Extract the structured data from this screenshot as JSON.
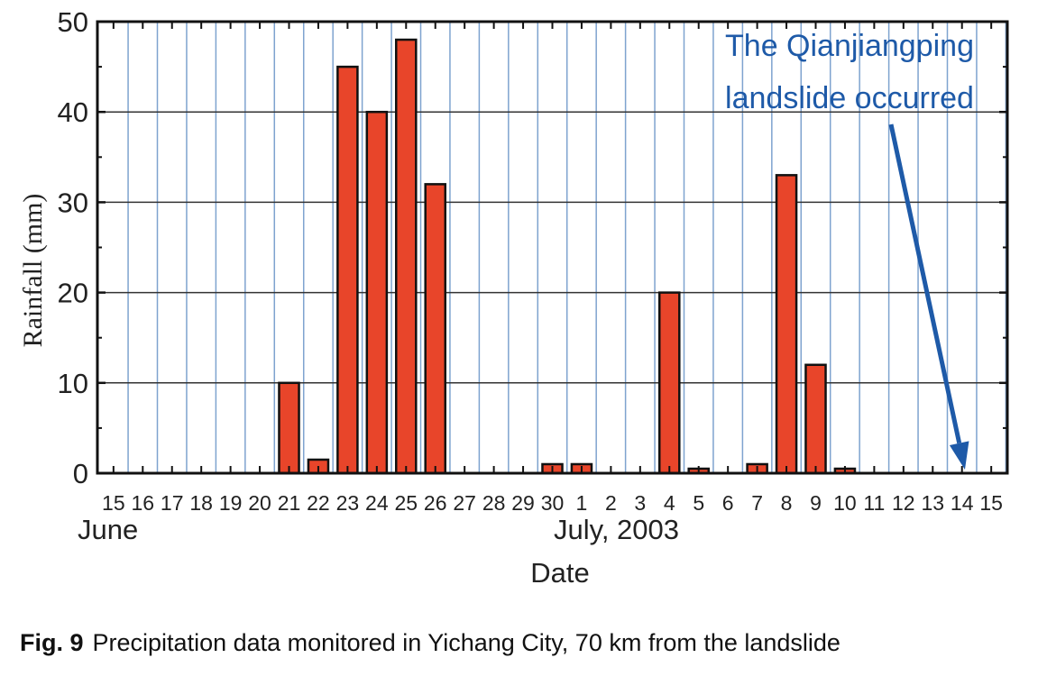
{
  "chart_data": {
    "type": "bar",
    "ylabel": "Rainfall (mm)",
    "xlabel": "Date",
    "ylim": [
      0,
      50
    ],
    "yticks": [
      0,
      10,
      20,
      30,
      40,
      50
    ],
    "grid": true,
    "month_labels": [
      "June",
      "July, 2003"
    ],
    "categories": [
      "15",
      "16",
      "17",
      "18",
      "19",
      "20",
      "21",
      "22",
      "23",
      "24",
      "25",
      "26",
      "27",
      "28",
      "29",
      "30",
      "1",
      "2",
      "3",
      "4",
      "5",
      "6",
      "7",
      "8",
      "9",
      "10",
      "11",
      "12",
      "13",
      "14",
      "15"
    ],
    "values": [
      0,
      0,
      0,
      0,
      0,
      0,
      10,
      1.5,
      45,
      40,
      48,
      32,
      0,
      0,
      0,
      1,
      1,
      0,
      0,
      20,
      0.5,
      0,
      1,
      33,
      12,
      0.5,
      0,
      0,
      0,
      0,
      0
    ],
    "bar_color": "#e8452a",
    "annotation": {
      "text_lines": [
        "The Qianjiangping",
        "landslide occurred"
      ],
      "target_category_index": 29,
      "color": "#1e5aa8"
    }
  },
  "caption": {
    "figure_label": "Fig. 9",
    "text": "Precipitation data monitored in Yichang City, 70 km from the landslide"
  }
}
